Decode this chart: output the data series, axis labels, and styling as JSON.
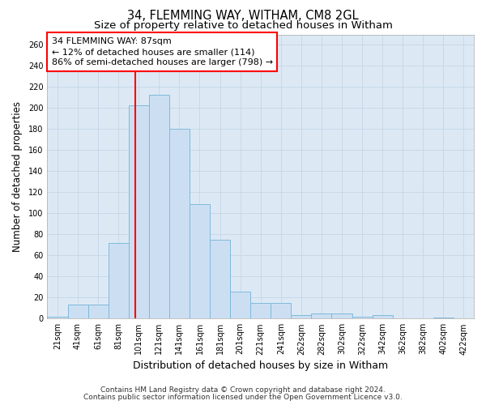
{
  "title1": "34, FLEMMING WAY, WITHAM, CM8 2GL",
  "title2": "Size of property relative to detached houses in Witham",
  "xlabel": "Distribution of detached houses by size in Witham",
  "ylabel": "Number of detached properties",
  "categories": [
    "21sqm",
    "41sqm",
    "61sqm",
    "81sqm",
    "101sqm",
    "121sqm",
    "141sqm",
    "161sqm",
    "181sqm",
    "201sqm",
    "221sqm",
    "241sqm",
    "262sqm",
    "282sqm",
    "302sqm",
    "322sqm",
    "342sqm",
    "362sqm",
    "382sqm",
    "402sqm",
    "422sqm"
  ],
  "values": [
    2,
    13,
    13,
    72,
    203,
    213,
    180,
    109,
    75,
    26,
    15,
    15,
    3,
    5,
    5,
    2,
    3,
    0,
    0,
    1,
    0
  ],
  "bar_color": "#ccdff2",
  "bar_edge_color": "#7fb9dc",
  "red_line_x": 3.83,
  "annotation_text": "34 FLEMMING WAY: 87sqm\n← 12% of detached houses are smaller (114)\n86% of semi-detached houses are larger (798) →",
  "annotation_box_color": "white",
  "annotation_box_edge_color": "red",
  "ylim": [
    0,
    270
  ],
  "yticks": [
    0,
    20,
    40,
    60,
    80,
    100,
    120,
    140,
    160,
    180,
    200,
    220,
    240,
    260
  ],
  "grid_color": "#c8d8e8",
  "plot_bg_color": "#dce9f5",
  "figure_bg_color": "#ffffff",
  "footer1": "Contains HM Land Registry data © Crown copyright and database right 2024.",
  "footer2": "Contains public sector information licensed under the Open Government Licence v3.0.",
  "title1_fontsize": 10.5,
  "title2_fontsize": 9.5,
  "xlabel_fontsize": 9,
  "ylabel_fontsize": 8.5,
  "tick_fontsize": 7,
  "annotation_fontsize": 8,
  "footer_fontsize": 6.5
}
